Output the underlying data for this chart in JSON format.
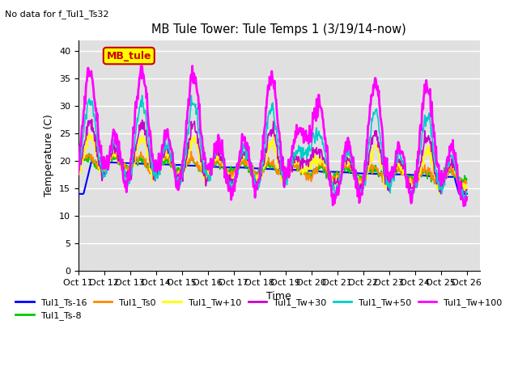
{
  "title": "MB Tule Tower: Tule Temps 1 (3/19/14-now)",
  "no_data_text": "No data for f_Tul1_Ts32",
  "ylabel": "Temperature (C)",
  "xlabel": "Time",
  "ylim": [
    0,
    42
  ],
  "yticks": [
    0,
    5,
    10,
    15,
    20,
    25,
    30,
    35,
    40
  ],
  "xlim": [
    0,
    15.5
  ],
  "xtick_positions": [
    0,
    1,
    2,
    3,
    4,
    5,
    6,
    7,
    8,
    9,
    10,
    11,
    12,
    13,
    14,
    15
  ],
  "xtick_labels": [
    "Oct 11",
    "Oct 12",
    "Oct 13",
    "Oct 14",
    "Oct 15",
    "Oct 16",
    "Oct 17",
    "Oct 18",
    "Oct 19",
    "Oct 20",
    "Oct 21",
    "Oct 22",
    "Oct 23",
    "Oct 24",
    "Oct 25",
    "Oct 26"
  ],
  "legend_label": "MB_tule",
  "legend_box_color": "#ffff00",
  "legend_box_edge": "#cc0000",
  "series_names": [
    "Tul1_Ts-16",
    "Tul1_Ts-8",
    "Tul1_Ts0",
    "Tul1_Tw+10",
    "Tul1_Tw+30",
    "Tul1_Tw+50",
    "Tul1_Tw+100"
  ],
  "series_colors": [
    "#0000ff",
    "#00cc00",
    "#ff8800",
    "#ffff00",
    "#cc00cc",
    "#00cccc",
    "#ff00ff"
  ],
  "series_lws": [
    1.5,
    1.2,
    1.2,
    1.2,
    1.2,
    1.2,
    2.0
  ],
  "background_color": "#e0e0e0",
  "grid_color": "#ffffff",
  "fig_color": "#ffffff"
}
